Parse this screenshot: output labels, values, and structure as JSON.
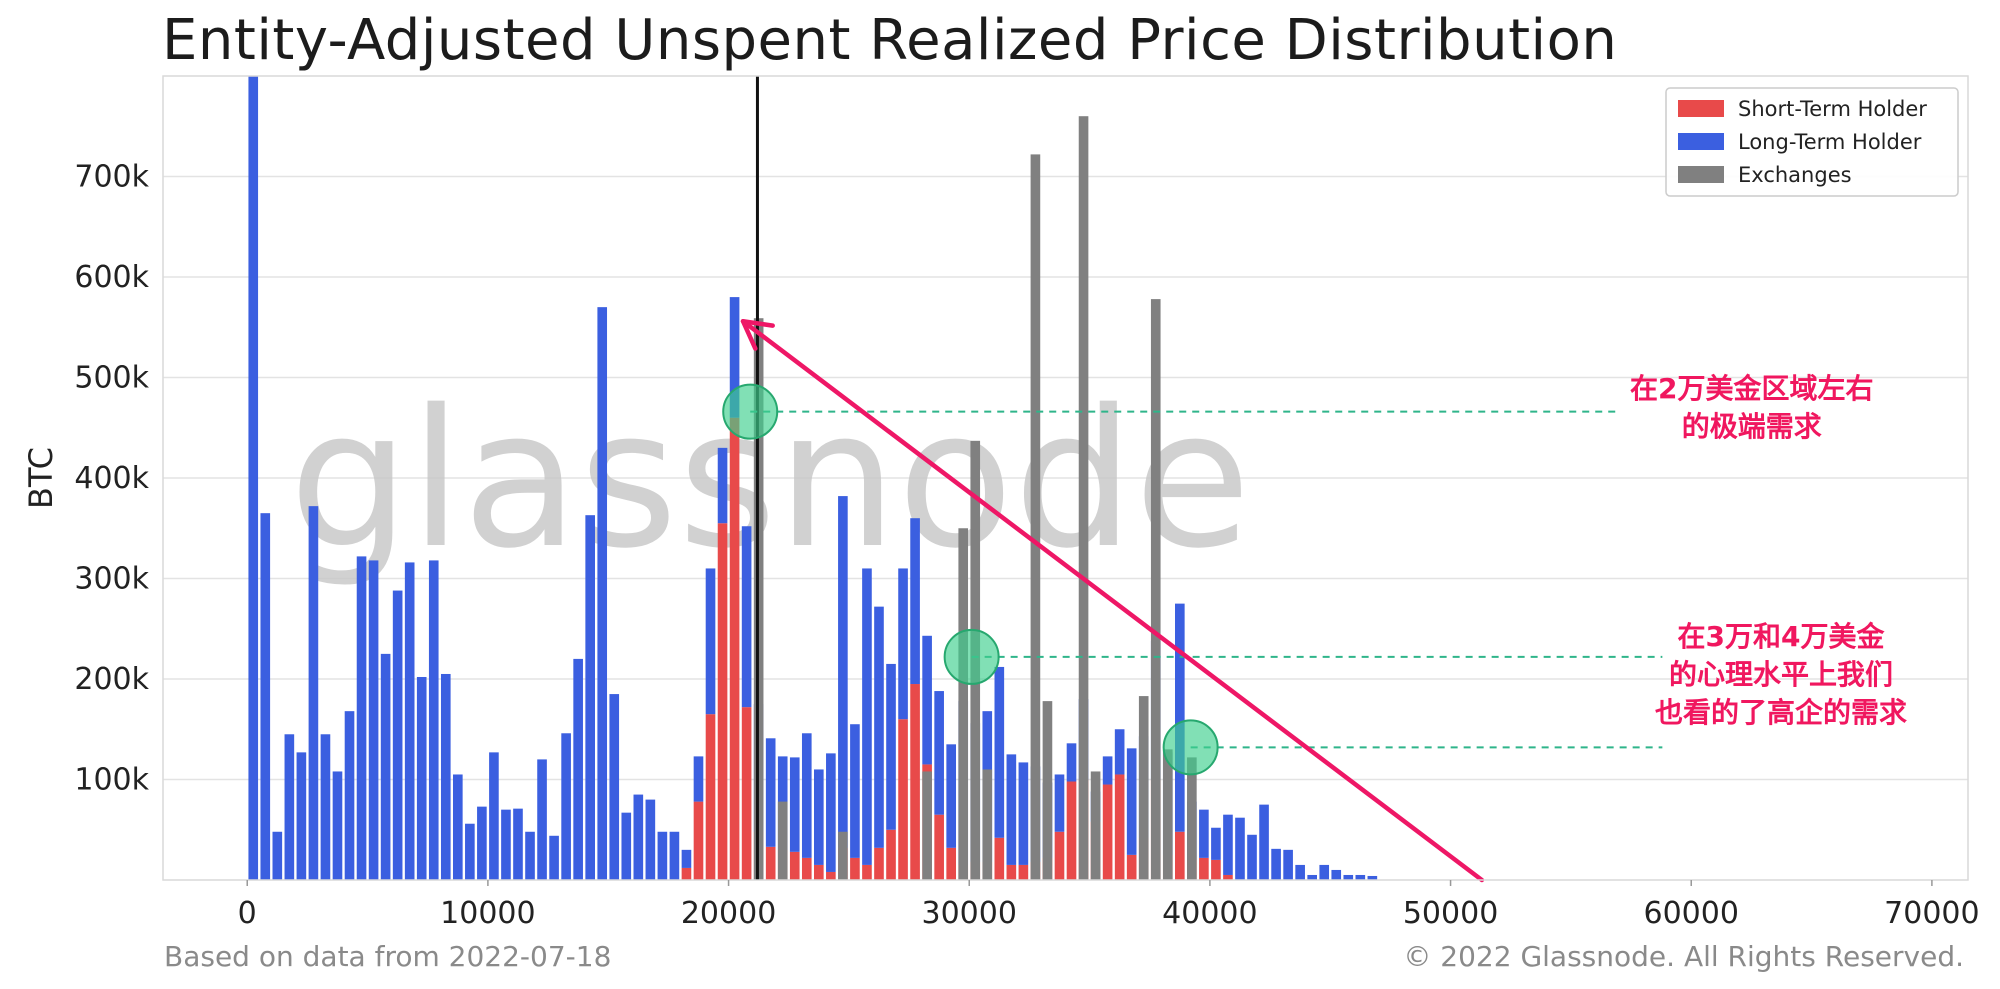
{
  "chart_data": {
    "type": "bar",
    "title": "Entity-Adjusted Unspent Realized Price Distribution",
    "xlabel": "",
    "ylabel": "BTC",
    "xlim": [
      -3500,
      71500
    ],
    "ylim": [
      0,
      800000
    ],
    "x_ticks": [
      0,
      10000,
      20000,
      30000,
      40000,
      50000,
      60000,
      70000
    ],
    "x_tick_labels": [
      "0",
      "10000",
      "20000",
      "30000",
      "40000",
      "50000",
      "60000",
      "70000"
    ],
    "y_ticks": [
      100000,
      200000,
      300000,
      400000,
      500000,
      600000,
      700000
    ],
    "y_tick_labels": [
      "100k",
      "200k",
      "300k",
      "400k",
      "500k",
      "600k",
      "700k"
    ],
    "grid": true,
    "bin_width": 500,
    "bin_centers_start": 250,
    "stacked": true,
    "series": [
      {
        "name": "Short-Term Holder",
        "color": "#e84a4a",
        "values": [
          0,
          0,
          0,
          0,
          0,
          0,
          0,
          0,
          0,
          0,
          0,
          0,
          0,
          0,
          0,
          0,
          0,
          0,
          0,
          0,
          0,
          0,
          0,
          0,
          0,
          0,
          0,
          0,
          0,
          0,
          0,
          0,
          0,
          0,
          0,
          0,
          12000,
          78000,
          165000,
          355000,
          460000,
          172000,
          48000,
          33000,
          30000,
          28000,
          22000,
          15000,
          8000,
          32000,
          22000,
          15000,
          32000,
          50000,
          160000,
          195000,
          115000,
          65000,
          32000,
          15000,
          18000,
          18000,
          42000,
          15000,
          15000,
          18000,
          22000,
          48000,
          98000,
          100000,
          58000,
          95000,
          105000,
          25000,
          42000,
          100000,
          25000,
          48000,
          20000,
          22000,
          20000,
          5000,
          0,
          0,
          0,
          0,
          0,
          0,
          0,
          0,
          0,
          0,
          0,
          0,
          0,
          0,
          0,
          0,
          0,
          0,
          0,
          0,
          0,
          0,
          0,
          0,
          0,
          0,
          0,
          0,
          0,
          0,
          0,
          0,
          0,
          0,
          0,
          0,
          0,
          0,
          0,
          0,
          0,
          0,
          0,
          0,
          0,
          0,
          0,
          0,
          0,
          0,
          0,
          0,
          0,
          0,
          0,
          0,
          0
        ]
      },
      {
        "name": "Long-Term Holder",
        "color": "#3b5fe0",
        "values": [
          800000,
          365000,
          48000,
          145000,
          127000,
          372000,
          145000,
          108000,
          168000,
          322000,
          318000,
          225000,
          288000,
          316000,
          202000,
          318000,
          205000,
          105000,
          56000,
          73000,
          127000,
          70000,
          71000,
          48000,
          120000,
          44000,
          146000,
          220000,
          363000,
          570000,
          185000,
          67000,
          85000,
          80000,
          48000,
          48000,
          18000,
          45000,
          145000,
          75000,
          120000,
          180000,
          127000,
          108000,
          93000,
          94000,
          124000,
          95000,
          118000,
          350000,
          133000,
          295000,
          240000,
          165000,
          150000,
          165000,
          128000,
          123000,
          103000,
          163000,
          138000,
          150000,
          170000,
          110000,
          102000,
          95000,
          75000,
          57000,
          38000,
          80000,
          30000,
          28000,
          45000,
          106000,
          101000,
          138000,
          102000,
          227000,
          58000,
          48000,
          32000,
          60000,
          62000,
          45000,
          75000,
          31000,
          30000,
          15000,
          5000,
          15000,
          10000,
          5000,
          5000,
          4000,
          0,
          0,
          0,
          0,
          0,
          0,
          0,
          0,
          0,
          0,
          0,
          0,
          0,
          0,
          0,
          0,
          0,
          0,
          0,
          0,
          0,
          0,
          0,
          0,
          0,
          0,
          0,
          0,
          0,
          0,
          0,
          0,
          0,
          0,
          0,
          0,
          0,
          0,
          0,
          0,
          0,
          0,
          0,
          0,
          0,
          0,
          0,
          0,
          0,
          0,
          0,
          0
        ]
      },
      {
        "name": "Exchanges",
        "color": "#808080",
        "values": [
          0,
          0,
          0,
          0,
          0,
          0,
          0,
          0,
          0,
          0,
          0,
          0,
          0,
          0,
          0,
          0,
          0,
          0,
          0,
          0,
          0,
          0,
          0,
          0,
          0,
          0,
          0,
          0,
          0,
          0,
          0,
          0,
          0,
          0,
          0,
          0,
          0,
          0,
          0,
          0,
          0,
          0,
          0,
          0,
          0,
          0,
          0,
          0,
          0,
          0,
          0,
          0,
          0,
          0,
          0,
          0,
          0,
          0,
          0,
          0,
          0,
          0,
          0,
          0,
          0,
          0,
          0,
          0,
          0,
          0,
          0,
          0,
          0,
          0,
          0,
          0,
          0,
          0,
          0,
          0,
          0,
          0,
          0,
          0,
          0,
          0,
          0,
          0,
          0,
          0,
          0,
          0,
          0,
          0,
          0,
          0,
          0,
          0,
          0,
          0,
          0,
          0,
          0,
          0,
          0,
          0,
          0,
          0,
          0,
          0,
          0,
          0,
          0,
          0,
          0,
          0,
          0,
          0,
          0,
          0,
          0,
          0,
          0,
          0,
          0,
          0,
          0,
          0,
          0,
          0,
          0,
          0,
          0,
          0,
          0,
          0,
          0,
          0,
          0,
          0
        ]
      }
    ],
    "exchange_bars": [
      {
        "x": 21250,
        "y": 559000
      },
      {
        "x": 22250,
        "y": 78000
      },
      {
        "x": 24750,
        "y": 48000
      },
      {
        "x": 28250,
        "y": 108000
      },
      {
        "x": 29750,
        "y": 350000
      },
      {
        "x": 30250,
        "y": 437000
      },
      {
        "x": 30750,
        "y": 110000
      },
      {
        "x": 32750,
        "y": 722000
      },
      {
        "x": 33250,
        "y": 178000
      },
      {
        "x": 34750,
        "y": 760000
      },
      {
        "x": 35250,
        "y": 108000
      },
      {
        "x": 37250,
        "y": 183000
      },
      {
        "x": 37750,
        "y": 578000
      },
      {
        "x": 38250,
        "y": 130000
      },
      {
        "x": 39250,
        "y": 122000
      }
    ],
    "vertical_line_x": 21200,
    "arrow": {
      "from": [
        51300,
        0
      ],
      "to": [
        20600,
        556000
      ]
    },
    "highlight_points": [
      {
        "x": 20900,
        "y": 466000
      },
      {
        "x": 30100,
        "y": 222000
      },
      {
        "x": 39200,
        "y": 132000
      }
    ],
    "reference_lines": [
      {
        "y": 466000,
        "x_start": 20900,
        "x_end": 57000
      },
      {
        "y": 222000,
        "x_start": 30100,
        "x_end": 58800
      },
      {
        "y": 132000,
        "x_start": 39200,
        "x_end": 58800
      }
    ],
    "legend_position": "top-right",
    "watermark": "glassnode",
    "annotations": {
      "a1": [
        "在2万美金区域左右",
        "的极端需求"
      ],
      "a2": [
        "在3万和4万美金",
        "的心理水平上我们",
        "也看的了高企的需求"
      ]
    }
  },
  "footer": {
    "left": "Based on data from 2022-07-18",
    "right": "© 2022 Glassnode. All Rights Reserved."
  }
}
